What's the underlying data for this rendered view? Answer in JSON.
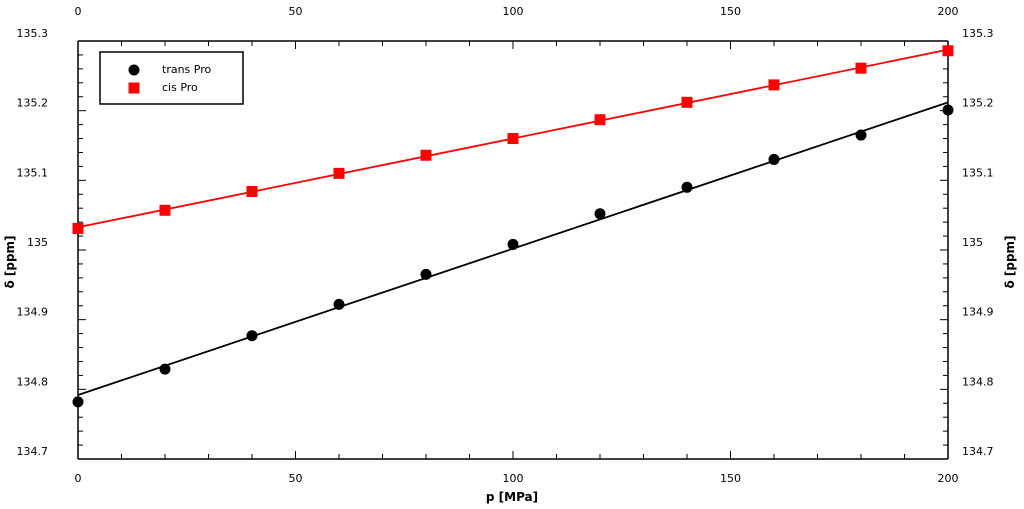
{
  "chart_data": {
    "type": "scatter",
    "title": "",
    "xlabel": "p [MPa]",
    "ylabel": "δ [ppm]",
    "xlim": [
      0,
      200
    ],
    "ylim": [
      134.7,
      135.3
    ],
    "x_ticks": [
      0,
      50,
      100,
      150,
      200
    ],
    "x_tick_labels": [
      "0",
      "50",
      "100",
      "150",
      "200"
    ],
    "y_ticks": [
      134.7,
      134.8,
      134.9,
      135.0,
      135.1,
      135.2,
      135.3
    ],
    "y_tick_labels": [
      "134.7",
      "134.8",
      "134.9",
      "135",
      "135.1",
      "135.2",
      "135.3"
    ],
    "grid": false,
    "legend_position": "top-left",
    "series": [
      {
        "name": "trans Pro",
        "marker": "circle",
        "color": "#000000",
        "fit": "line",
        "x": [
          0,
          20,
          40,
          60,
          80,
          100,
          120,
          140,
          160,
          180,
          200
        ],
        "y": [
          134.782,
          134.829,
          134.877,
          134.922,
          134.965,
          135.008,
          135.052,
          135.09,
          135.13,
          135.165,
          135.201
        ]
      },
      {
        "name": "cis Pro",
        "marker": "square",
        "color": "#ff0000",
        "fit": "line",
        "x": [
          0,
          20,
          40,
          60,
          80,
          100,
          120,
          140,
          160,
          180,
          200
        ],
        "y": [
          135.031,
          135.057,
          135.084,
          135.11,
          135.136,
          135.16,
          135.187,
          135.212,
          135.237,
          135.261,
          135.286
        ]
      }
    ]
  }
}
